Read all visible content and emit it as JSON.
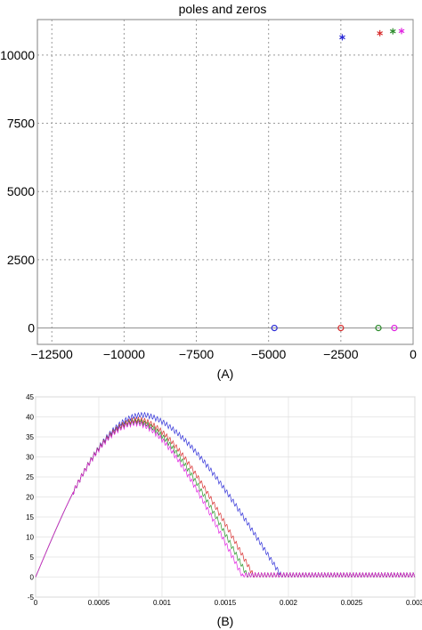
{
  "figure": {
    "label_a": "(A)",
    "label_b": "(B)"
  },
  "chart_data": [
    {
      "type": "scatter",
      "title": "poles and zeros",
      "xlabel": "",
      "ylabel": "",
      "xlim": [
        -13000,
        0
      ],
      "ylim": [
        -600,
        11300
      ],
      "grid": true,
      "x_ticks": [
        -12500,
        -10000,
        -7500,
        -5000,
        -2500,
        0
      ],
      "x_tick_labels": [
        "−12500",
        "−10000",
        "−7500",
        "−5000",
        "−2500",
        "0"
      ],
      "y_ticks": [
        0,
        2500,
        5000,
        7500,
        10000
      ],
      "y_tick_labels": [
        "0",
        "2500",
        "5000",
        "7500",
        "10000"
      ],
      "poles": [
        {
          "x": -2450,
          "y": 10650,
          "color": "#2b2bd6"
        },
        {
          "x": -1150,
          "y": 10800,
          "color": "#d62b2b"
        },
        {
          "x": -700,
          "y": 10870,
          "color": "#2a8a2a"
        },
        {
          "x": -400,
          "y": 10880,
          "color": "#e020e0"
        }
      ],
      "zeros": [
        {
          "x": -4800,
          "y": 0,
          "color": "#2b2bd6"
        },
        {
          "x": -2500,
          "y": 0,
          "color": "#d62b2b"
        },
        {
          "x": -1200,
          "y": 0,
          "color": "#2a8a2a"
        },
        {
          "x": -650,
          "y": 0,
          "color": "#e020e0"
        }
      ]
    },
    {
      "type": "line",
      "title": "",
      "xlabel": "",
      "ylabel": "",
      "xlim": [
        0,
        0.003
      ],
      "ylim": [
        -5,
        45
      ],
      "grid": true,
      "x_ticks": [
        0,
        0.0005,
        0.001,
        0.0015,
        0.002,
        0.0025,
        0.003
      ],
      "x_tick_labels": [
        "0",
        "0.0005",
        "0.001",
        "0.0015",
        "0.002",
        "0.0025",
        "0.003"
      ],
      "y_ticks": [
        -5,
        0,
        5,
        10,
        15,
        20,
        25,
        30,
        35,
        40,
        45
      ],
      "y_tick_labels": [
        "-5",
        "0",
        "5",
        "10",
        "15",
        "20",
        "25",
        "30",
        "35",
        "40",
        "45"
      ],
      "series": [
        {
          "color": "#3030d8",
          "peak_x": 0.00085,
          "peak_y": 40.5,
          "end_x": 0.00195
        },
        {
          "color": "#d83030",
          "peak_x": 0.00082,
          "peak_y": 39.3,
          "end_x": 0.00173
        },
        {
          "color": "#2a962a",
          "peak_x": 0.00081,
          "peak_y": 38.8,
          "end_x": 0.00168
        },
        {
          "color": "#e020e0",
          "peak_x": 0.0008,
          "peak_y": 38.4,
          "end_x": 0.00164
        }
      ],
      "ripple_amplitude": 0.7
    }
  ]
}
